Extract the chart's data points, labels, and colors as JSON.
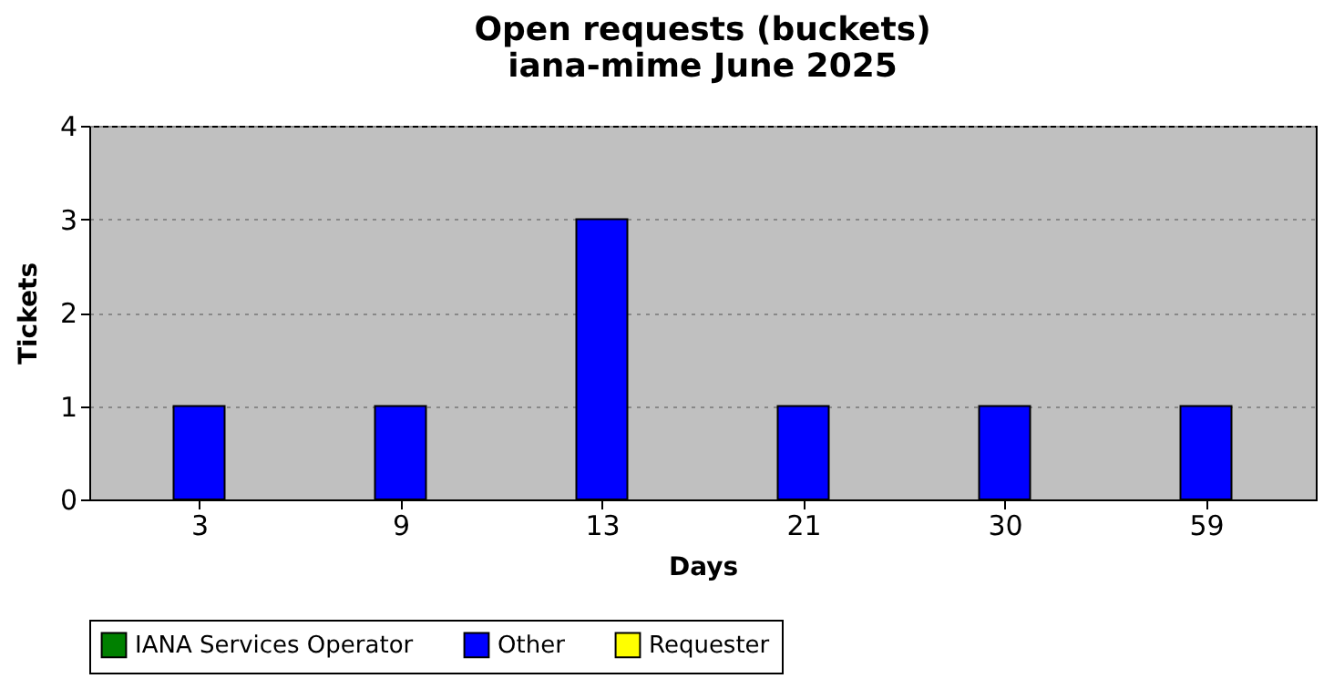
{
  "chart_data": {
    "type": "bar",
    "title": "Open requests (buckets)",
    "subtitle": "iana-mime June 2025",
    "xlabel": "Days",
    "ylabel": "Tickets",
    "categories": [
      "3",
      "9",
      "13",
      "21",
      "30",
      "59"
    ],
    "series": [
      {
        "name": "IANA Services Operator",
        "color": "#008000",
        "values": [
          0,
          0,
          0,
          0,
          0,
          0
        ]
      },
      {
        "name": "Other",
        "color": "#0000ff",
        "values": [
          1,
          1,
          3,
          1,
          1,
          1
        ]
      },
      {
        "name": "Requester",
        "color": "#ffff00",
        "values": [
          0,
          0,
          0,
          0,
          0,
          0
        ]
      }
    ],
    "ylim": [
      0,
      4
    ],
    "yticks": [
      0,
      1,
      2,
      3,
      4
    ],
    "grid": "y",
    "legend": "bottom"
  }
}
